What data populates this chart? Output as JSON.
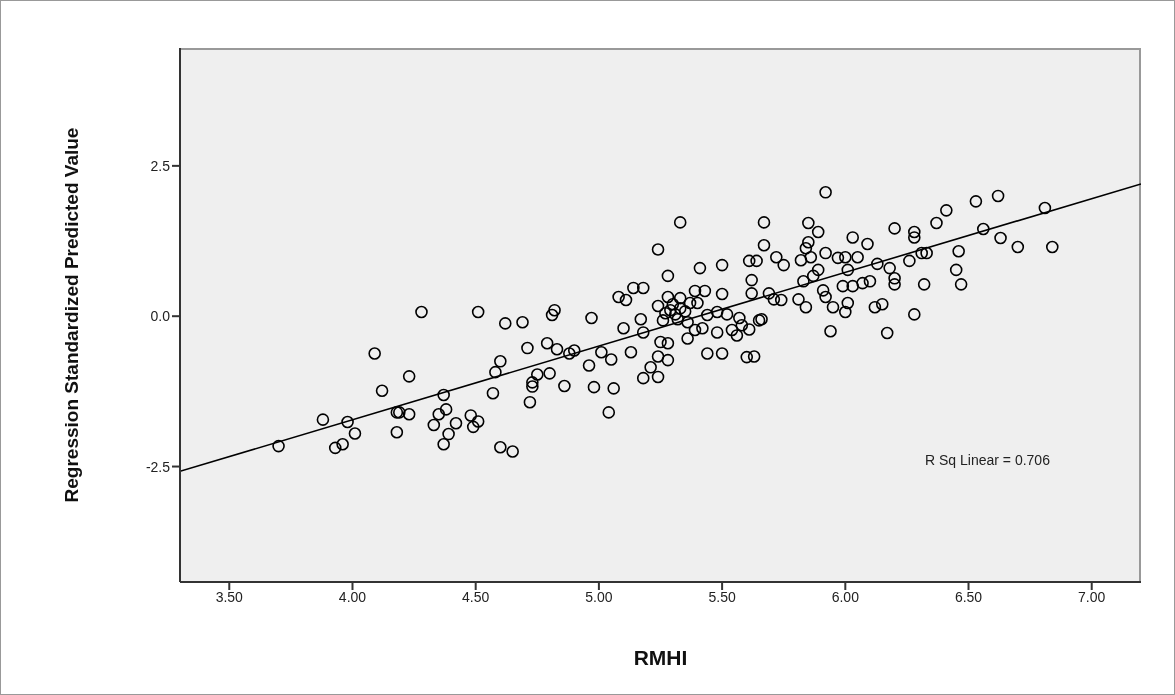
{
  "chart_data": {
    "type": "scatter",
    "xlabel": "RMHI",
    "ylabel": "Regression Standardized Predicted Value",
    "xlim": [
      3.3,
      7.2
    ],
    "ylim": [
      -4.42,
      4.46
    ],
    "xticks": [
      {
        "value": 3.5,
        "label": "3.50"
      },
      {
        "value": 4,
        "label": "4.00"
      },
      {
        "value": 4.5,
        "label": "4.50"
      },
      {
        "value": 5,
        "label": "5.00"
      },
      {
        "value": 5.5,
        "label": "5.50"
      },
      {
        "value": 6,
        "label": "6.00"
      },
      {
        "value": 6.5,
        "label": "6.50"
      },
      {
        "value": 7,
        "label": "7.00"
      }
    ],
    "yticks": [
      {
        "value": -2.5,
        "label": "-2.5"
      },
      {
        "value": 0,
        "label": "0.0"
      },
      {
        "value": 2.5,
        "label": "2.5"
      }
    ],
    "marker": "circle",
    "annotations": [
      "R Sq Linear = 0.706"
    ],
    "series": [
      {
        "color": "#000000",
        "x": [
          4.28,
          4.51,
          4.62,
          4.69,
          4.81,
          4.82,
          4.97,
          5.1,
          5.17,
          4.09,
          4.23,
          4.12,
          4.37,
          3.88,
          3.98,
          4.01,
          3.93,
          3.96,
          3.7,
          4.18,
          4.19,
          4.23,
          4.18,
          4.33,
          4.35,
          4.38,
          4.42,
          4.39,
          4.37,
          4.48,
          4.51,
          4.49,
          4.6,
          4.65,
          4.57,
          4.58,
          4.6,
          4.71,
          4.79,
          4.83,
          4.73,
          4.73,
          4.72,
          4.75,
          4.8,
          4.86,
          4.88,
          4.9,
          4.96,
          4.98,
          5.01,
          5.05,
          5.06,
          5.04,
          5.13,
          5.18,
          5.25,
          5.24,
          5.21,
          5.18,
          5.24,
          5.28,
          5.24,
          5.28,
          5.08,
          5.11,
          5.14,
          5.18,
          5.24,
          5.26,
          5.28,
          5.28,
          5.33,
          5.37,
          5.4,
          5.29,
          5.31,
          5.35,
          5.33,
          5.3,
          5.27,
          5.32,
          5.36,
          5.44,
          5.48,
          5.52,
          5.57,
          5.58,
          5.65,
          5.36,
          5.39,
          5.42,
          5.48,
          5.54,
          5.56,
          5.61,
          5.44,
          5.5,
          5.6,
          5.63,
          5.39,
          5.43,
          5.41,
          5.5,
          5.5,
          5.62,
          5.62,
          5.33,
          5.69,
          5.71,
          5.74,
          5.81,
          5.84,
          5.92,
          5.67,
          5.85,
          5.89,
          6.2,
          6.28,
          6.28,
          6.37,
          6.41,
          6.53,
          6.62,
          6.81,
          6.56,
          6.63,
          6.7,
          6.84,
          6.03,
          6.09,
          5.85,
          5.84,
          5.67,
          5.61,
          5.64,
          5.72,
          5.75,
          5.82,
          5.86,
          5.92,
          5.97,
          6.0,
          6.05,
          6.13,
          6.18,
          6.26,
          6.31,
          6.33,
          6.46,
          6.45,
          6.47,
          6.32,
          6.28,
          6.2,
          6.2,
          6.01,
          5.89,
          5.87,
          5.83,
          5.99,
          6.03,
          6.07,
          6.1,
          6.01,
          6.0,
          5.95,
          5.91,
          5.92,
          6.12,
          6.15,
          5.94,
          6.17,
          5.66
        ],
        "values": [
          0.07,
          0.07,
          -0.12,
          -0.1,
          0.02,
          0.1,
          -0.03,
          -0.2,
          -0.05,
          -0.62,
          -1.0,
          -1.24,
          -1.31,
          -1.72,
          -1.76,
          -1.95,
          -2.19,
          -2.13,
          -2.16,
          -1.6,
          -1.6,
          -1.63,
          -1.93,
          -1.81,
          -1.63,
          -1.55,
          -1.78,
          -1.96,
          -2.13,
          -1.65,
          -1.75,
          -1.84,
          -2.18,
          -2.25,
          -1.28,
          -0.93,
          -0.75,
          -0.53,
          -0.45,
          -0.55,
          -1.1,
          -1.17,
          -1.43,
          -0.97,
          -0.95,
          -1.16,
          -0.62,
          -0.57,
          -0.82,
          -1.18,
          -0.6,
          -0.72,
          -1.2,
          -1.6,
          -0.6,
          -0.27,
          -0.43,
          -0.67,
          -0.85,
          -1.03,
          -1.01,
          -0.73,
          1.11,
          0.67,
          0.32,
          0.27,
          0.47,
          0.47,
          0.17,
          -0.07,
          -0.45,
          0.32,
          0.3,
          0.22,
          0.22,
          0.1,
          0.03,
          0.08,
          0.13,
          0.2,
          0.05,
          -0.05,
          -0.1,
          0.02,
          0.07,
          0.03,
          -0.03,
          -0.15,
          -0.07,
          -0.37,
          -0.23,
          -0.2,
          -0.27,
          -0.23,
          -0.32,
          -0.22,
          -0.62,
          -0.62,
          -0.68,
          -0.67,
          0.42,
          0.42,
          0.8,
          0.85,
          0.37,
          0.38,
          0.6,
          1.56,
          0.38,
          0.28,
          0.27,
          0.28,
          0.15,
          2.06,
          1.56,
          1.55,
          1.4,
          1.46,
          1.4,
          1.31,
          1.55,
          1.76,
          1.91,
          2.0,
          1.8,
          1.45,
          1.3,
          1.15,
          1.15,
          1.31,
          1.2,
          1.23,
          1.13,
          1.18,
          0.92,
          0.92,
          0.98,
          0.85,
          0.93,
          0.98,
          1.05,
          0.97,
          0.98,
          0.98,
          0.87,
          0.8,
          0.92,
          1.05,
          1.05,
          1.08,
          0.77,
          0.53,
          0.53,
          0.03,
          0.63,
          0.53,
          0.77,
          0.77,
          0.67,
          0.58,
          0.5,
          0.5,
          0.55,
          0.58,
          0.22,
          0.07,
          0.15,
          0.43,
          0.32,
          0.15,
          0.2,
          -0.25,
          -0.28,
          -0.05
        ]
      },
      {
        "type": "line",
        "color": "#000000",
        "marker": "none",
        "x": [
          3.3,
          7.2
        ],
        "values": [
          -2.58,
          2.2
        ]
      }
    ]
  }
}
